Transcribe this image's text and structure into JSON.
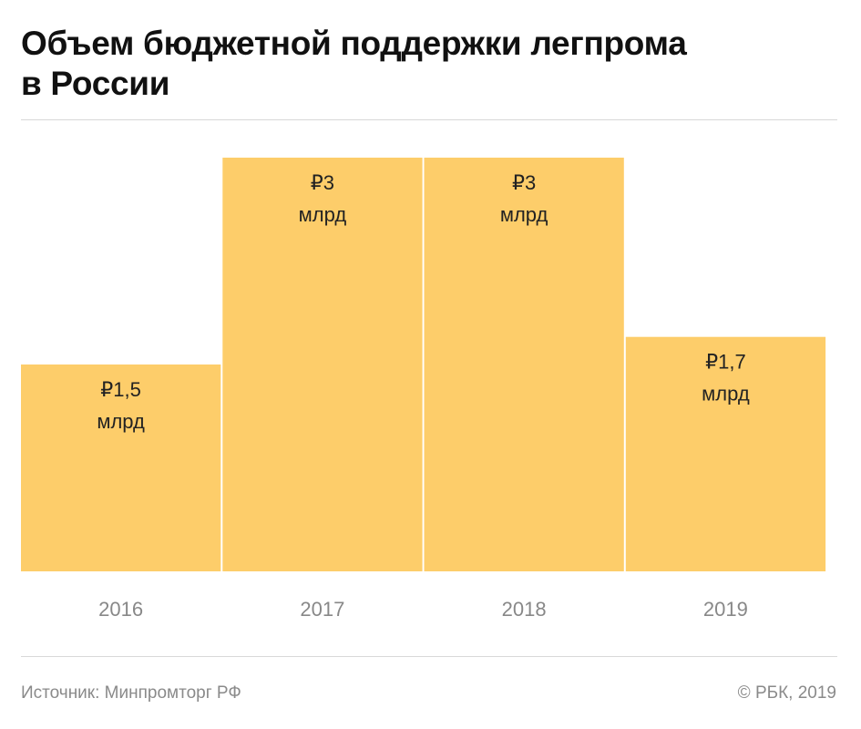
{
  "header": {
    "title_line1": "Объем бюджетной поддержки легпрома",
    "title_line2": "в России"
  },
  "chart_data": {
    "type": "bar",
    "title": "Объем бюджетной поддержки легпрома в России",
    "categories": [
      "2016",
      "2017",
      "2018",
      "2019"
    ],
    "values": [
      1.5,
      3,
      3,
      1.7
    ],
    "value_labels": [
      [
        "₽1,5",
        "млрд"
      ],
      [
        "₽3",
        "млрд"
      ],
      [
        "₽3",
        "млрд"
      ],
      [
        "₽1,7",
        "млрд"
      ]
    ],
    "unit": "млрд руб.",
    "xlabel": "",
    "ylabel": "",
    "ylim": [
      0,
      3
    ],
    "grid": false,
    "legend": "none",
    "colors": {
      "bar": "#fdcd6a",
      "label_text": "#222222",
      "tick_text": "#888888"
    }
  },
  "footer": {
    "source": "Источник: Минпромторг РФ",
    "copyright": "© РБК, 2019"
  }
}
